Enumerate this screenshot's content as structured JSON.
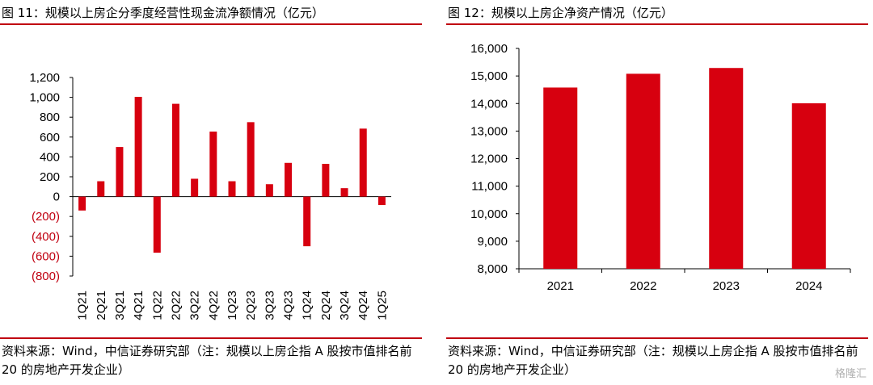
{
  "left_panel": {
    "title": "图 11：规模以上房企分季度经营性现金流净额情况（亿元）",
    "source": "资料来源：Wind，中信证券研究部（注：规模以上房企指 A 股按市值排名前 20 的房地产开发企业）"
  },
  "right_panel": {
    "title": "图 12：规模以上房企净资产情况（亿元）",
    "source": "资料来源：Wind，中信证券研究部（注：规模以上房企指 A 股按市值排名前 20 的房地产开发企业）"
  },
  "watermark": "格隆汇",
  "colors": {
    "bar": "#d7000f",
    "accent_rule": "#c00010"
  },
  "chart_data": [
    {
      "type": "bar",
      "title": "图 11：规模以上房企分季度经营性现金流净额情况（亿元）",
      "categories": [
        "1Q21",
        "2Q21",
        "3Q21",
        "4Q21",
        "1Q22",
        "2Q22",
        "3Q22",
        "4Q22",
        "1Q23",
        "2Q23",
        "3Q23",
        "4Q23",
        "1Q24",
        "2Q24",
        "3Q24",
        "4Q24",
        "1Q25"
      ],
      "values": [
        -140,
        155,
        500,
        1005,
        -565,
        935,
        180,
        655,
        155,
        750,
        125,
        340,
        -500,
        330,
        85,
        685,
        -85
      ],
      "ylim": [
        -800,
        1200
      ],
      "yticks": [
        1200,
        1000,
        800,
        600,
        400,
        200,
        0,
        -200,
        -400,
        -600,
        -800
      ],
      "ytick_labels": [
        "1,200",
        "1,000",
        "800",
        "600",
        "400",
        "200",
        "0",
        "(200)",
        "(400)",
        "(600)",
        "(800)"
      ],
      "xlabel": "",
      "ylabel": "",
      "grid": false
    },
    {
      "type": "bar",
      "title": "图 12：规模以上房企净资产情况（亿元）",
      "categories": [
        "2021",
        "2022",
        "2023",
        "2024"
      ],
      "values": [
        14580,
        15080,
        15290,
        14010
      ],
      "ylim": [
        8000,
        16000
      ],
      "yticks": [
        16000,
        15000,
        14000,
        13000,
        12000,
        11000,
        10000,
        9000,
        8000
      ],
      "ytick_labels": [
        "16,000",
        "15,000",
        "14,000",
        "13,000",
        "12,000",
        "11,000",
        "10,000",
        "9,000",
        "8,000"
      ],
      "xlabel": "",
      "ylabel": "",
      "grid": false
    }
  ]
}
